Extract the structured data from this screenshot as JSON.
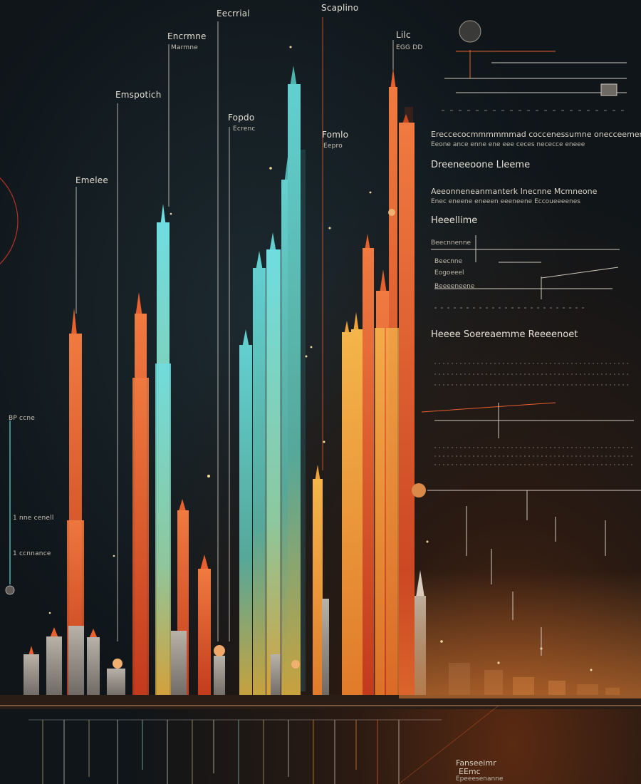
{
  "tower_labels": [
    {
      "id": "a",
      "text": "Eecrrial"
    },
    {
      "id": "b",
      "text": "Scaplino"
    },
    {
      "id": "c",
      "text": "Encrmne",
      "sub": "Marmne"
    },
    {
      "id": "d",
      "text": "Lilc",
      "sub": "EGG DD"
    },
    {
      "id": "e",
      "text": "Emspotich"
    },
    {
      "id": "f",
      "text": "Fopdo",
      "sub": "Ecrenc"
    },
    {
      "id": "g",
      "text": "Emelee"
    },
    {
      "id": "h",
      "text": "Fomlo",
      "sub": "Eepro"
    }
  ],
  "left_axis": {
    "top_label": "BP ccne",
    "mid_label": "1 nne cenell",
    "low_label": "1 ccnnance"
  },
  "right_panel": {
    "line_1": "Ereccecocmmmmmmad coccenessumne onecceemend",
    "line_2": "Eeone ance enne ene eee ceces nececce eneee",
    "heading_1": "Dreeneeoone Lleeme",
    "line_3": "Aeeonneneanmanterk Inecnne Mcmneone",
    "line_4": "Enec eneene eneeen eeeneene Eccoueeeenes",
    "heading_2": "Heeellime",
    "row_1": "Beecnnenne",
    "row_2": "Beecnne",
    "row_3": "Eogoeeel",
    "row_4": "Beeeeneene",
    "heading_3": "Heeee Soereaemme Reeeenoet"
  },
  "footer_label": {
    "line_1": "Fanseeimr",
    "line_2": "EEmc",
    "line_3": "Epeeesenanne"
  },
  "colors": {
    "background": "#0f1519",
    "teal": "#4fb3ad",
    "cyan": "#62d3cf",
    "orange": "#e8602e",
    "amber": "#f0a23a",
    "gray": "#8f8a83"
  }
}
